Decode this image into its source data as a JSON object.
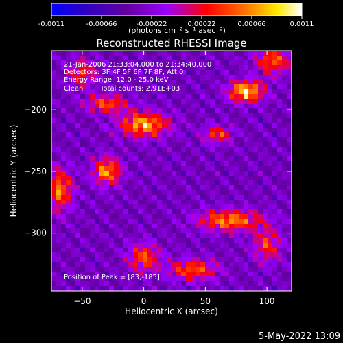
{
  "title": "Reconstructed RHESSI Image",
  "colorbar": {
    "tick_labels": [
      "-0.0011",
      "-0.00066",
      "-0.00022",
      "0.00022",
      "0.00066",
      "0.0011"
    ],
    "tick_values": [
      -0.0011,
      -0.00066,
      -0.00022,
      0.00022,
      0.00066,
      0.0011
    ],
    "range": [
      -0.0011,
      0.0011
    ],
    "units_label": "(photons cm⁻² s⁻¹ asec⁻²)",
    "colors": [
      "#0000ff",
      "#2a00c8",
      "#6400a0",
      "#9b00ff",
      "#ff0000",
      "#ff7800",
      "#ffe600",
      "#ffffff"
    ]
  },
  "annotations": {
    "time_range": "21-Jan-2006 21:33:04.000 to 21:34:40.000",
    "detectors": "Detectors: 3F 4F 5F 6F 7F 8F, Att 0",
    "energy_range": "Energy Range: 12.0 - 25.0 keV",
    "clean": "Clean",
    "total_counts": "Total counts: 2.91E+03",
    "peak_position": "Position of Peak = [83,-185]"
  },
  "footer_date": "5-May-2022 13:09",
  "chart_data": {
    "type": "heatmap",
    "title": "Reconstructed RHESSI Image",
    "xlabel": "Heliocentric X (arcsec)",
    "ylabel": "Heliocentric Y (arcsec)",
    "xlim": [
      -75,
      120
    ],
    "ylim": [
      -347,
      -152
    ],
    "x_ticks": [
      -50,
      0,
      50,
      100
    ],
    "y_ticks": [
      -200,
      -250,
      -300
    ],
    "peak": [
      83,
      -185
    ],
    "blobs": [
      {
        "x": 83,
        "y": -185,
        "amp": 0.0011,
        "sx": 10,
        "sy": 6
      },
      {
        "x": 0,
        "y": -212,
        "amp": 0.00095,
        "sx": 14,
        "sy": 7
      },
      {
        "x": -30,
        "y": -250,
        "amp": 0.0008,
        "sx": 8,
        "sy": 8
      },
      {
        "x": -68,
        "y": -265,
        "amp": 0.0007,
        "sx": 7,
        "sy": 12
      },
      {
        "x": 70,
        "y": -290,
        "amp": 0.0008,
        "sx": 18,
        "sy": 6
      },
      {
        "x": 40,
        "y": -330,
        "amp": 0.0006,
        "sx": 14,
        "sy": 6
      },
      {
        "x": -30,
        "y": -195,
        "amp": 0.0006,
        "sx": 12,
        "sy": 5
      },
      {
        "x": 60,
        "y": -220,
        "amp": 0.0005,
        "sx": 8,
        "sy": 5
      },
      {
        "x": 105,
        "y": -160,
        "amp": 0.0006,
        "sx": 10,
        "sy": 8
      },
      {
        "x": 0,
        "y": -320,
        "amp": 0.0006,
        "sx": 9,
        "sy": 8
      },
      {
        "x": -50,
        "y": -170,
        "amp": 0.0004,
        "sx": 8,
        "sy": 8
      },
      {
        "x": 100,
        "y": -310,
        "amp": 0.00045,
        "sx": 8,
        "sy": 10
      }
    ],
    "background_level": -0.00035,
    "grid": false
  }
}
